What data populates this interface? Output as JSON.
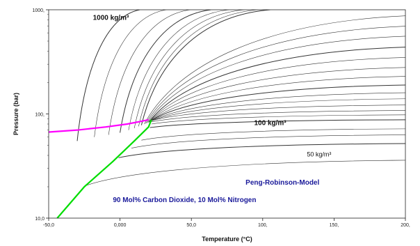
{
  "chart_data": {
    "type": "line",
    "title": "",
    "xlabel": "Temperature (°C)",
    "ylabel": "Pressure (bar)",
    "xlim": [
      -50,
      200
    ],
    "ylim": [
      10,
      1000
    ],
    "yscale": "log",
    "x_tick_labels": [
      "-50,0",
      "0,000",
      "50,0",
      "100,",
      "150,",
      "200,"
    ],
    "x_tick_values": [
      -50,
      0,
      50,
      100,
      150,
      200
    ],
    "y_tick_labels": [
      "10,0",
      "100,",
      "1000,"
    ],
    "y_tick_values": [
      10,
      100,
      1000
    ],
    "grid": false,
    "annotations": [
      {
        "text": "1000 kg/m³",
        "x": -19,
        "y": 800,
        "style": "bold"
      },
      {
        "text": "100 kg/m³",
        "x": 94,
        "y": 78,
        "style": "bold"
      },
      {
        "text": "50 kg/m³",
        "x": 131,
        "y": 39,
        "style": "small"
      },
      {
        "text": "Peng-Robinson-Model",
        "x": 88,
        "y": 21,
        "style": "blue"
      },
      {
        "text": "90 Mol% Carbon Dioxide, 10 Mol% Nitrogen",
        "x": -5,
        "y": 14.2,
        "style": "blue"
      }
    ],
    "bubble_curve": {
      "color": "#ff00ff",
      "x": [
        -50,
        -30,
        -10,
        5,
        15,
        20
      ],
      "y": [
        67,
        70,
        75,
        80,
        85,
        88
      ]
    },
    "dew_curve": {
      "color": "#00dd00",
      "x": [
        -44,
        -25,
        -5,
        10,
        20,
        22
      ],
      "y": [
        10,
        20,
        35,
        55,
        75,
        88
      ]
    },
    "isochores": [
      {
        "x0": -30,
        "p_start": 55,
        "p_end": 1000,
        "w": 1.0
      },
      {
        "x0": -18,
        "p_start": 60,
        "p_end": 1000,
        "w": 0.6
      },
      {
        "x0": -8,
        "p_start": 63,
        "p_end": 1000,
        "w": 0.6
      },
      {
        "x0": 0,
        "p_start": 66,
        "p_end": 1000,
        "w": 1.0
      },
      {
        "x0": 6,
        "p_start": 70,
        "p_end": 1000,
        "w": 0.6
      },
      {
        "x0": 10,
        "p_start": 73,
        "p_end": 1000,
        "w": 0.6
      },
      {
        "x0": 13,
        "p_start": 76,
        "p_end": 1000,
        "w": 0.6
      },
      {
        "x0": 15,
        "p_start": 78,
        "p_end": 1000,
        "w": 1.0
      },
      {
        "x0": 17,
        "p_start": 80,
        "p_end": 880,
        "w": 0.6
      },
      {
        "x0": 18,
        "p_start": 81,
        "p_end": 700,
        "w": 0.6
      },
      {
        "x0": 19,
        "p_start": 82,
        "p_end": 560,
        "w": 0.6
      },
      {
        "x0": 20,
        "p_start": 83,
        "p_end": 440,
        "w": 1.0
      },
      {
        "x0": 20.5,
        "p_start": 84,
        "p_end": 350,
        "w": 0.6
      },
      {
        "x0": 21,
        "p_start": 85,
        "p_end": 280,
        "w": 0.6
      },
      {
        "x0": 21.3,
        "p_start": 85,
        "p_end": 230,
        "w": 0.6
      },
      {
        "x0": 21.6,
        "p_start": 86,
        "p_end": 190,
        "w": 1.0
      },
      {
        "x0": 21.8,
        "p_start": 86,
        "p_end": 160,
        "w": 0.6
      },
      {
        "x0": 22,
        "p_start": 86,
        "p_end": 140,
        "w": 0.6
      },
      {
        "x0": 22,
        "p_start": 86,
        "p_end": 122,
        "w": 0.6
      },
      {
        "x0": 22,
        "p_start": 84,
        "p_end": 108,
        "w": 0.6
      },
      {
        "x0": 22,
        "p_start": 80,
        "p_end": 98,
        "w": 0.6
      },
      {
        "x0": 21,
        "p_start": 74,
        "p_end": 88,
        "w": 1.0
      },
      {
        "x0": 15,
        "p_start": 56,
        "p_end": 72,
        "w": 0.6
      },
      {
        "x0": 8,
        "p_start": 47,
        "p_end": 63,
        "w": 0.6
      },
      {
        "x0": -1,
        "p_start": 38,
        "p_end": 52,
        "w": 1.0
      },
      {
        "x0": -24,
        "p_start": 20.5,
        "p_end": 36,
        "w": 0.6
      }
    ]
  }
}
